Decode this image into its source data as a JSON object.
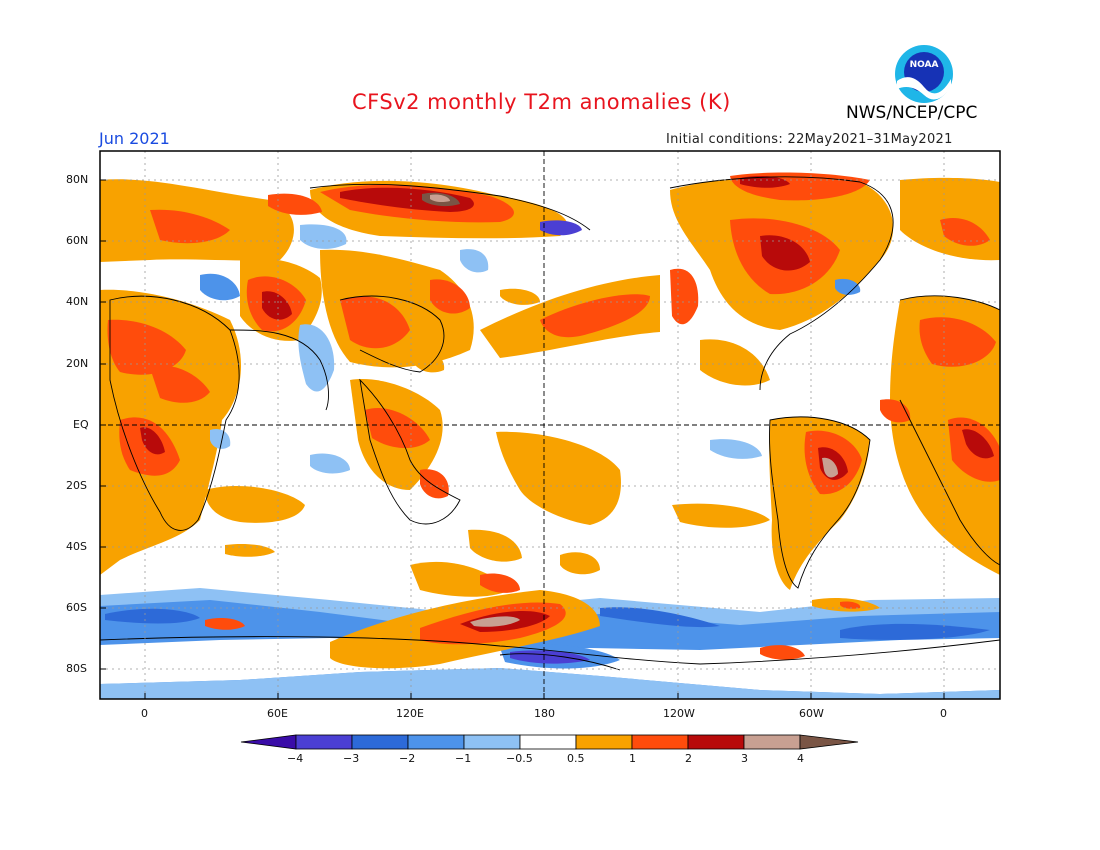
{
  "header": {
    "title": "CFSv2 monthly T2m anomalies (K)",
    "month": "Jun 2021",
    "initial_conditions": "Initial conditions: 22May2021–31May2021",
    "agency": "NWS/NCEP/CPC",
    "logo_text": "NOAA"
  },
  "map": {
    "lat_labels": [
      "80N",
      "60N",
      "40N",
      "20N",
      "EQ",
      "20S",
      "40S",
      "60S",
      "80S"
    ],
    "lon_labels": [
      "0",
      "60E",
      "120E",
      "180",
      "120W",
      "60W",
      "0"
    ],
    "lat_range": [
      -90,
      90
    ],
    "lon_range": [
      -20,
      385
    ],
    "grid": "dotted"
  },
  "colorbar": {
    "labels": [
      "−4",
      "−3",
      "−2",
      "−1",
      "−0.5",
      "0.5",
      "1",
      "2",
      "3",
      "4"
    ],
    "colors": [
      "#3a0ca8",
      "#4b3fd3",
      "#2d6ad8",
      "#4d93ea",
      "#8ec1f4",
      "#ffffff",
      "#f8a200",
      "#ff4c0c",
      "#b80a0a",
      "#c8a092",
      "#7a5545"
    ]
  },
  "colors": {
    "title": "#e8141e",
    "month": "#1a4be0"
  }
}
